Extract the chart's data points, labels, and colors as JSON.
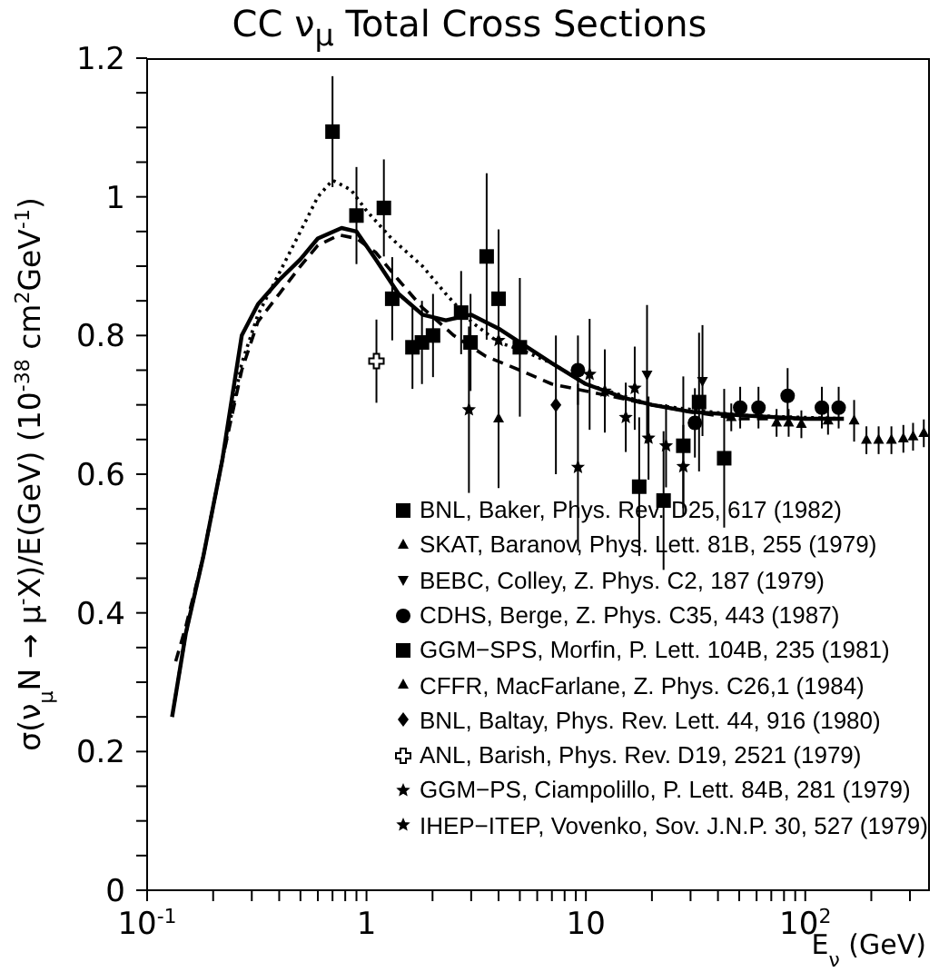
{
  "chart_data": {
    "type": "scatter",
    "title": "CC ν$_{μ}$ Total Cross Sections",
    "xlabel": "E$_{ν}$ (GeV)",
    "ylabel": "σ(ν$_{μ}$N → μ$^{-}$X)/E(GeV)  (10$^{-38}$ cm$^{2}$GeV$^{-1}$)",
    "log": "x",
    "xlim": [
      0.1,
      370
    ],
    "ylim": [
      0,
      1.2
    ],
    "xticks": [
      {
        "value": 0.1,
        "label": "10$^{-1}$"
      },
      {
        "value": 0.2,
        "label": null
      },
      {
        "value": 0.3,
        "label": null
      },
      {
        "value": 0.4,
        "label": null
      },
      {
        "value": 0.5,
        "label": null
      },
      {
        "value": 0.6,
        "label": null
      },
      {
        "value": 0.7,
        "label": null
      },
      {
        "value": 0.8,
        "label": null
      },
      {
        "value": 0.9,
        "label": null
      },
      1,
      {
        "value": 2,
        "label": null
      },
      {
        "value": 3,
        "label": null
      },
      {
        "value": 4,
        "label": null
      },
      {
        "value": 5,
        "label": null
      },
      {
        "value": 6,
        "label": null
      },
      {
        "value": 7,
        "label": null
      },
      {
        "value": 8,
        "label": null
      },
      {
        "value": 9,
        "label": null
      },
      10,
      {
        "value": 20,
        "label": null
      },
      {
        "value": 30,
        "label": null
      },
      {
        "value": 40,
        "label": null
      },
      {
        "value": 50,
        "label": null
      },
      {
        "value": 60,
        "label": null
      },
      {
        "value": 70,
        "label": null
      },
      {
        "value": 80,
        "label": null
      },
      {
        "value": 90,
        "label": null
      },
      {
        "value": 100,
        "label": "10$^{2}$"
      },
      {
        "value": 200,
        "label": null
      },
      {
        "value": 300,
        "label": null
      }
    ],
    "yticks": [
      0,
      {
        "value": 0.05,
        "label": null
      },
      {
        "value": 0.1,
        "label": null
      },
      {
        "value": 0.15,
        "label": null
      },
      0.2,
      {
        "value": 0.25,
        "label": null
      },
      {
        "value": 0.3,
        "label": null
      },
      {
        "value": 0.35,
        "label": null
      },
      0.4,
      {
        "value": 0.45,
        "label": null
      },
      {
        "value": 0.5,
        "label": null
      },
      {
        "value": 0.55,
        "label": null
      },
      0.6,
      {
        "value": 0.65,
        "label": null
      },
      {
        "value": 0.7,
        "label": null
      },
      {
        "value": 0.75,
        "label": null
      },
      0.8,
      {
        "value": 0.85,
        "label": null
      },
      {
        "value": 0.9,
        "label": null
      },
      {
        "value": 0.95,
        "label": null
      },
      1,
      {
        "value": 1.05,
        "label": null
      },
      {
        "value": 1.1,
        "label": null
      },
      {
        "value": 1.15,
        "label": null
      },
      1.2
    ],
    "grid": false,
    "legend": "bottom right",
    "series": [
      {
        "type": "line",
        "color": "#000000",
        "line_style": "dotted",
        "marker": "none",
        "x": [
          0.13,
          0.15,
          0.18,
          0.22,
          0.27,
          0.32,
          0.4,
          0.5,
          0.6,
          0.7,
          0.85,
          1.0,
          1.3,
          1.8,
          2.3,
          3,
          4,
          5,
          7,
          10,
          20,
          50,
          150
        ],
        "values": [
          0.25,
          0.37,
          0.48,
          0.62,
          0.76,
          0.83,
          0.89,
          0.95,
          1.0,
          1.024,
          1.01,
          0.98,
          0.94,
          0.9,
          0.86,
          0.82,
          0.79,
          0.78,
          0.76,
          0.73,
          0.7,
          0.685,
          0.68
        ]
      },
      {
        "type": "line",
        "color": "#000000",
        "line_style": "solid",
        "marker": "none",
        "x": [
          0.13,
          0.15,
          0.18,
          0.22,
          0.27,
          0.32,
          0.4,
          0.5,
          0.6,
          0.77,
          0.9,
          1.1,
          1.4,
          1.8,
          2.3,
          3,
          4,
          5,
          7,
          10,
          15,
          20,
          30,
          50,
          100,
          150
        ],
        "values": [
          0.25,
          0.37,
          0.48,
          0.62,
          0.8,
          0.845,
          0.88,
          0.91,
          0.94,
          0.955,
          0.95,
          0.91,
          0.86,
          0.83,
          0.822,
          0.83,
          0.81,
          0.79,
          0.76,
          0.73,
          0.71,
          0.7,
          0.69,
          0.685,
          0.68,
          0.68
        ]
      },
      {
        "type": "line",
        "color": "#000000",
        "line_style": "dashed",
        "marker": "none",
        "x": [
          0.135,
          0.15,
          0.18,
          0.22,
          0.27,
          0.32,
          0.4,
          0.5,
          0.6,
          0.75,
          0.9,
          1.1,
          1.4,
          1.8,
          2.5,
          3.5,
          5,
          7,
          10,
          20,
          30,
          50,
          150
        ],
        "values": [
          0.33,
          0.38,
          0.48,
          0.62,
          0.75,
          0.82,
          0.86,
          0.9,
          0.93,
          0.945,
          0.94,
          0.92,
          0.88,
          0.84,
          0.8,
          0.77,
          0.75,
          0.73,
          0.72,
          0.7,
          0.69,
          0.68,
          0.68
        ]
      },
      {
        "name": "BNL, Baker, Phys. Rev. D25, 617 (1982)",
        "color": "#000000",
        "marker": "square",
        "x": [
          0.7,
          0.9,
          1.2,
          1.31,
          1.62,
          1.79,
          2.01,
          2.7,
          2.98,
          3.53,
          4.0,
          5.0
        ],
        "values": [
          1.094,
          0.973,
          0.984,
          0.853,
          0.783,
          0.79,
          0.8,
          0.833,
          0.79,
          0.914,
          0.853,
          0.783
        ],
        "errors": [
          0.08,
          0.07,
          0.07,
          0.06,
          0.06,
          0.06,
          0.06,
          0.06,
          0.07,
          0.12,
          0.1,
          0.1
        ]
      },
      {
        "name": "SKAT, Baranov, Phys. Lett. 81B, 255 (1979)",
        "color": "#000000",
        "marker": "triangle",
        "x": [
          4.0
        ],
        "values": [
          0.68
        ],
        "errors": [
          0.1
        ]
      },
      {
        "name": "BEBC, Colley, Z. Phys. C2, 187 (1979)",
        "color": "#000000",
        "marker": "triangle-down",
        "x": [
          19.0,
          34.0
        ],
        "values": [
          0.744,
          0.735
        ],
        "errors": [
          0.1,
          0.08
        ]
      },
      {
        "name": "CDHS, Berge, Z. Phys. C35, 443 (1987)",
        "color": "#000000",
        "marker": "circle",
        "x": [
          9.2,
          31.4,
          50.5,
          61.2,
          83.1,
          119,
          142
        ],
        "values": [
          0.75,
          0.674,
          0.696,
          0.696,
          0.713,
          0.696,
          0.696
        ],
        "errors": [
          0.05,
          0.05,
          0.03,
          0.03,
          0.04,
          0.03,
          0.03
        ]
      },
      {
        "name": "GGM−SPS, Morfin, P. Lett. 104B, 235 (1981)",
        "color": "#000000",
        "marker": "square",
        "x": [
          17.5,
          22.6,
          27.8,
          32.8,
          42.7
        ],
        "values": [
          0.582,
          0.562,
          0.641,
          0.704,
          0.623
        ],
        "errors": [
          0.1,
          0.1,
          0.1,
          0.1,
          0.1
        ]
      },
      {
        "name": "CFFR, MacFarlane, Z. Phys. C26,1 (1984)",
        "color": "#000000",
        "marker": "triangle",
        "x": [
          46,
          74,
          84,
          96,
          127,
          167,
          190,
          216,
          247,
          280,
          310,
          347
        ],
        "values": [
          0.682,
          0.674,
          0.674,
          0.672,
          0.677,
          0.677,
          0.649,
          0.649,
          0.649,
          0.651,
          0.654,
          0.659
        ],
        "errors": [
          0.02,
          0.02,
          0.02,
          0.02,
          0.02,
          0.03,
          0.02,
          0.02,
          0.02,
          0.02,
          0.02,
          0.02
        ]
      },
      {
        "name": "BNL, Baltay, Phys. Rev. Lett. 44, 916 (1980)",
        "color": "#000000",
        "marker": "diamond",
        "x": [
          7.3
        ],
        "values": [
          0.7
        ],
        "errors": [
          0.1
        ]
      },
      {
        "name": "ANL, Barish, Phys. Rev. D19, 2521 (1979)",
        "color": "#000000",
        "marker": "cross",
        "x": [
          1.11
        ],
        "values": [
          0.763
        ],
        "errors": [
          0.06
        ]
      },
      {
        "name": "GGM−PS, Ciampolillo, P. Lett. 84B, 281 (1979)",
        "color": "#000000",
        "marker": "star",
        "x": [
          2.93,
          9.2
        ],
        "values": [
          0.693,
          0.61
        ],
        "errors": [
          0.12,
          0.12
        ]
      },
      {
        "name": "IHEP−ITEP, Vovenko, Sov. J.N.P. 30, 527 (1979)",
        "color": "#000000",
        "marker": "star",
        "x": [
          4.0,
          10.4,
          12.2,
          15.2,
          16.7,
          19.3,
          23.2,
          27.8
        ],
        "values": [
          0.793,
          0.744,
          0.72,
          0.682,
          0.724,
          0.652,
          0.641,
          0.611
        ],
        "errors": [
          0.08,
          0.08,
          0.06,
          0.05,
          0.06,
          0.06,
          0.06,
          0.06
        ]
      }
    ]
  }
}
